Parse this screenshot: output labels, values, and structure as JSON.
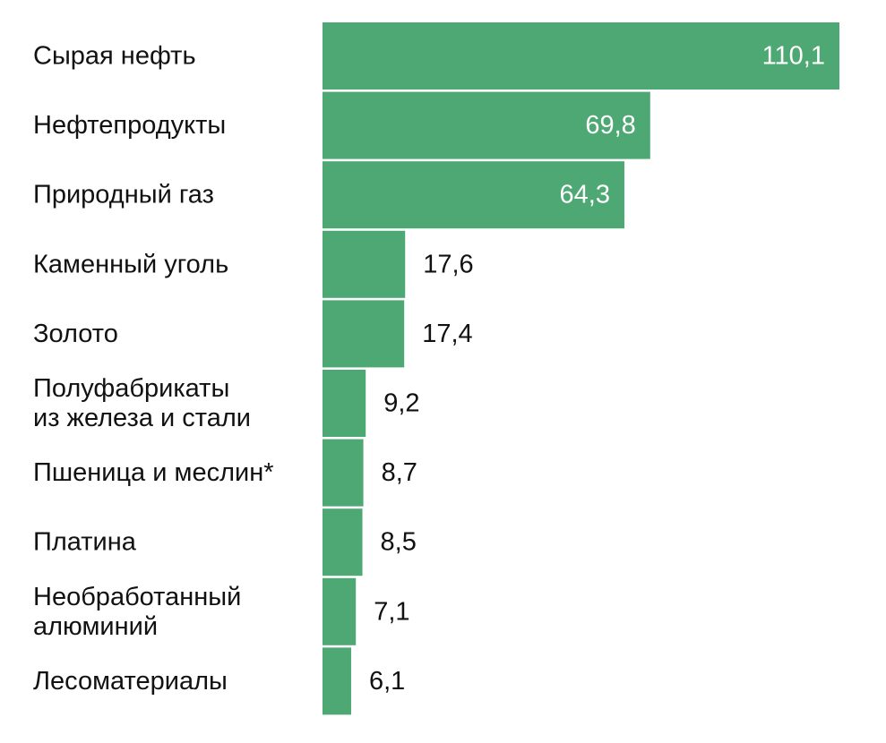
{
  "chart_data": {
    "type": "bar",
    "orientation": "horizontal",
    "title": "",
    "xlabel": "",
    "ylabel": "",
    "grid": false,
    "legend": "none",
    "bar_color": "#4ea873",
    "inside_label_color": "#ffffff",
    "outside_label_color": "#111111",
    "categories": [
      [
        "Сырая нефть"
      ],
      [
        "Нефтепродукты"
      ],
      [
        "Природный газ"
      ],
      [
        "Каменный уголь"
      ],
      [
        "Золото"
      ],
      [
        "Полуфабрикаты",
        "из железа и стали"
      ],
      [
        "Пшеница и меслин*"
      ],
      [
        "Платина"
      ],
      [
        "Необработанный",
        "алюминий"
      ],
      [
        "Лесоматериалы"
      ]
    ],
    "values": [
      110.1,
      69.8,
      64.3,
      17.6,
      17.4,
      9.2,
      8.7,
      8.5,
      7.1,
      6.1
    ],
    "value_labels": [
      "110,1",
      "69,8",
      "64,3",
      "17,6",
      "17,4",
      "9,2",
      "8,7",
      "8,5",
      "7,1",
      "6,1"
    ],
    "xlim": [
      0,
      110.1
    ]
  }
}
